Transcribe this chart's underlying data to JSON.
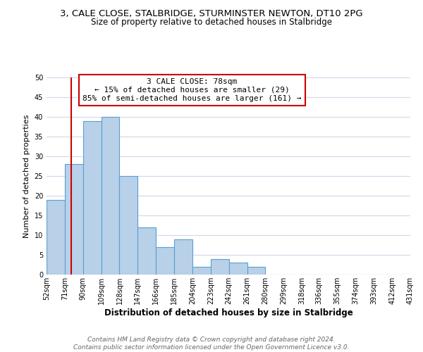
{
  "title": "3, CALE CLOSE, STALBRIDGE, STURMINSTER NEWTON, DT10 2PG",
  "subtitle": "Size of property relative to detached houses in Stalbridge",
  "xlabel": "Distribution of detached houses by size in Stalbridge",
  "ylabel": "Number of detached properties",
  "bin_edges": [
    52,
    71,
    90,
    109,
    128,
    147,
    166,
    185,
    204,
    223,
    242,
    261,
    280,
    299,
    318,
    336,
    355,
    374,
    393,
    412,
    431
  ],
  "bin_labels": [
    "52sqm",
    "71sqm",
    "90sqm",
    "109sqm",
    "128sqm",
    "147sqm",
    "166sqm",
    "185sqm",
    "204sqm",
    "223sqm",
    "242sqm",
    "261sqm",
    "280sqm",
    "299sqm",
    "318sqm",
    "336sqm",
    "355sqm",
    "374sqm",
    "393sqm",
    "412sqm",
    "431sqm"
  ],
  "counts": [
    19,
    28,
    39,
    40,
    25,
    12,
    7,
    9,
    2,
    4,
    3,
    2,
    0,
    0,
    0,
    0,
    0,
    0,
    0,
    0
  ],
  "bar_color": "#b8d0e8",
  "bar_edge_color": "#5a9fd4",
  "vline_x": 78,
  "vline_color": "#cc0000",
  "annotation_text": "3 CALE CLOSE: 78sqm\n← 15% of detached houses are smaller (29)\n85% of semi-detached houses are larger (161) →",
  "annotation_box_color": "#ffffff",
  "annotation_box_edge_color": "#cc0000",
  "ylim": [
    0,
    50
  ],
  "yticks": [
    0,
    5,
    10,
    15,
    20,
    25,
    30,
    35,
    40,
    45,
    50
  ],
  "footer_text": "Contains HM Land Registry data © Crown copyright and database right 2024.\nContains public sector information licensed under the Open Government Licence v3.0.",
  "grid_color": "#d0d8e8",
  "background_color": "#ffffff",
  "title_fontsize": 9.5,
  "subtitle_fontsize": 8.5,
  "xlabel_fontsize": 8.5,
  "ylabel_fontsize": 8,
  "tick_fontsize": 7,
  "annotation_fontsize": 8,
  "footer_fontsize": 6.5
}
